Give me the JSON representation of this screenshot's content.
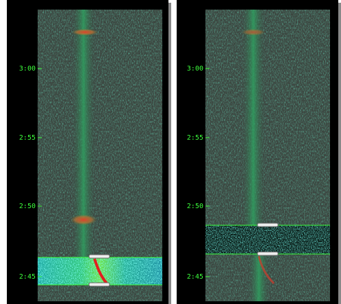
{
  "panels": [
    {
      "time_labels": [
        "3:00",
        "2:55",
        "2:50",
        "2:45"
      ]
    },
    {
      "time_labels": [
        "3:00",
        "2:55",
        "2:50",
        "2:45"
      ]
    }
  ]
}
